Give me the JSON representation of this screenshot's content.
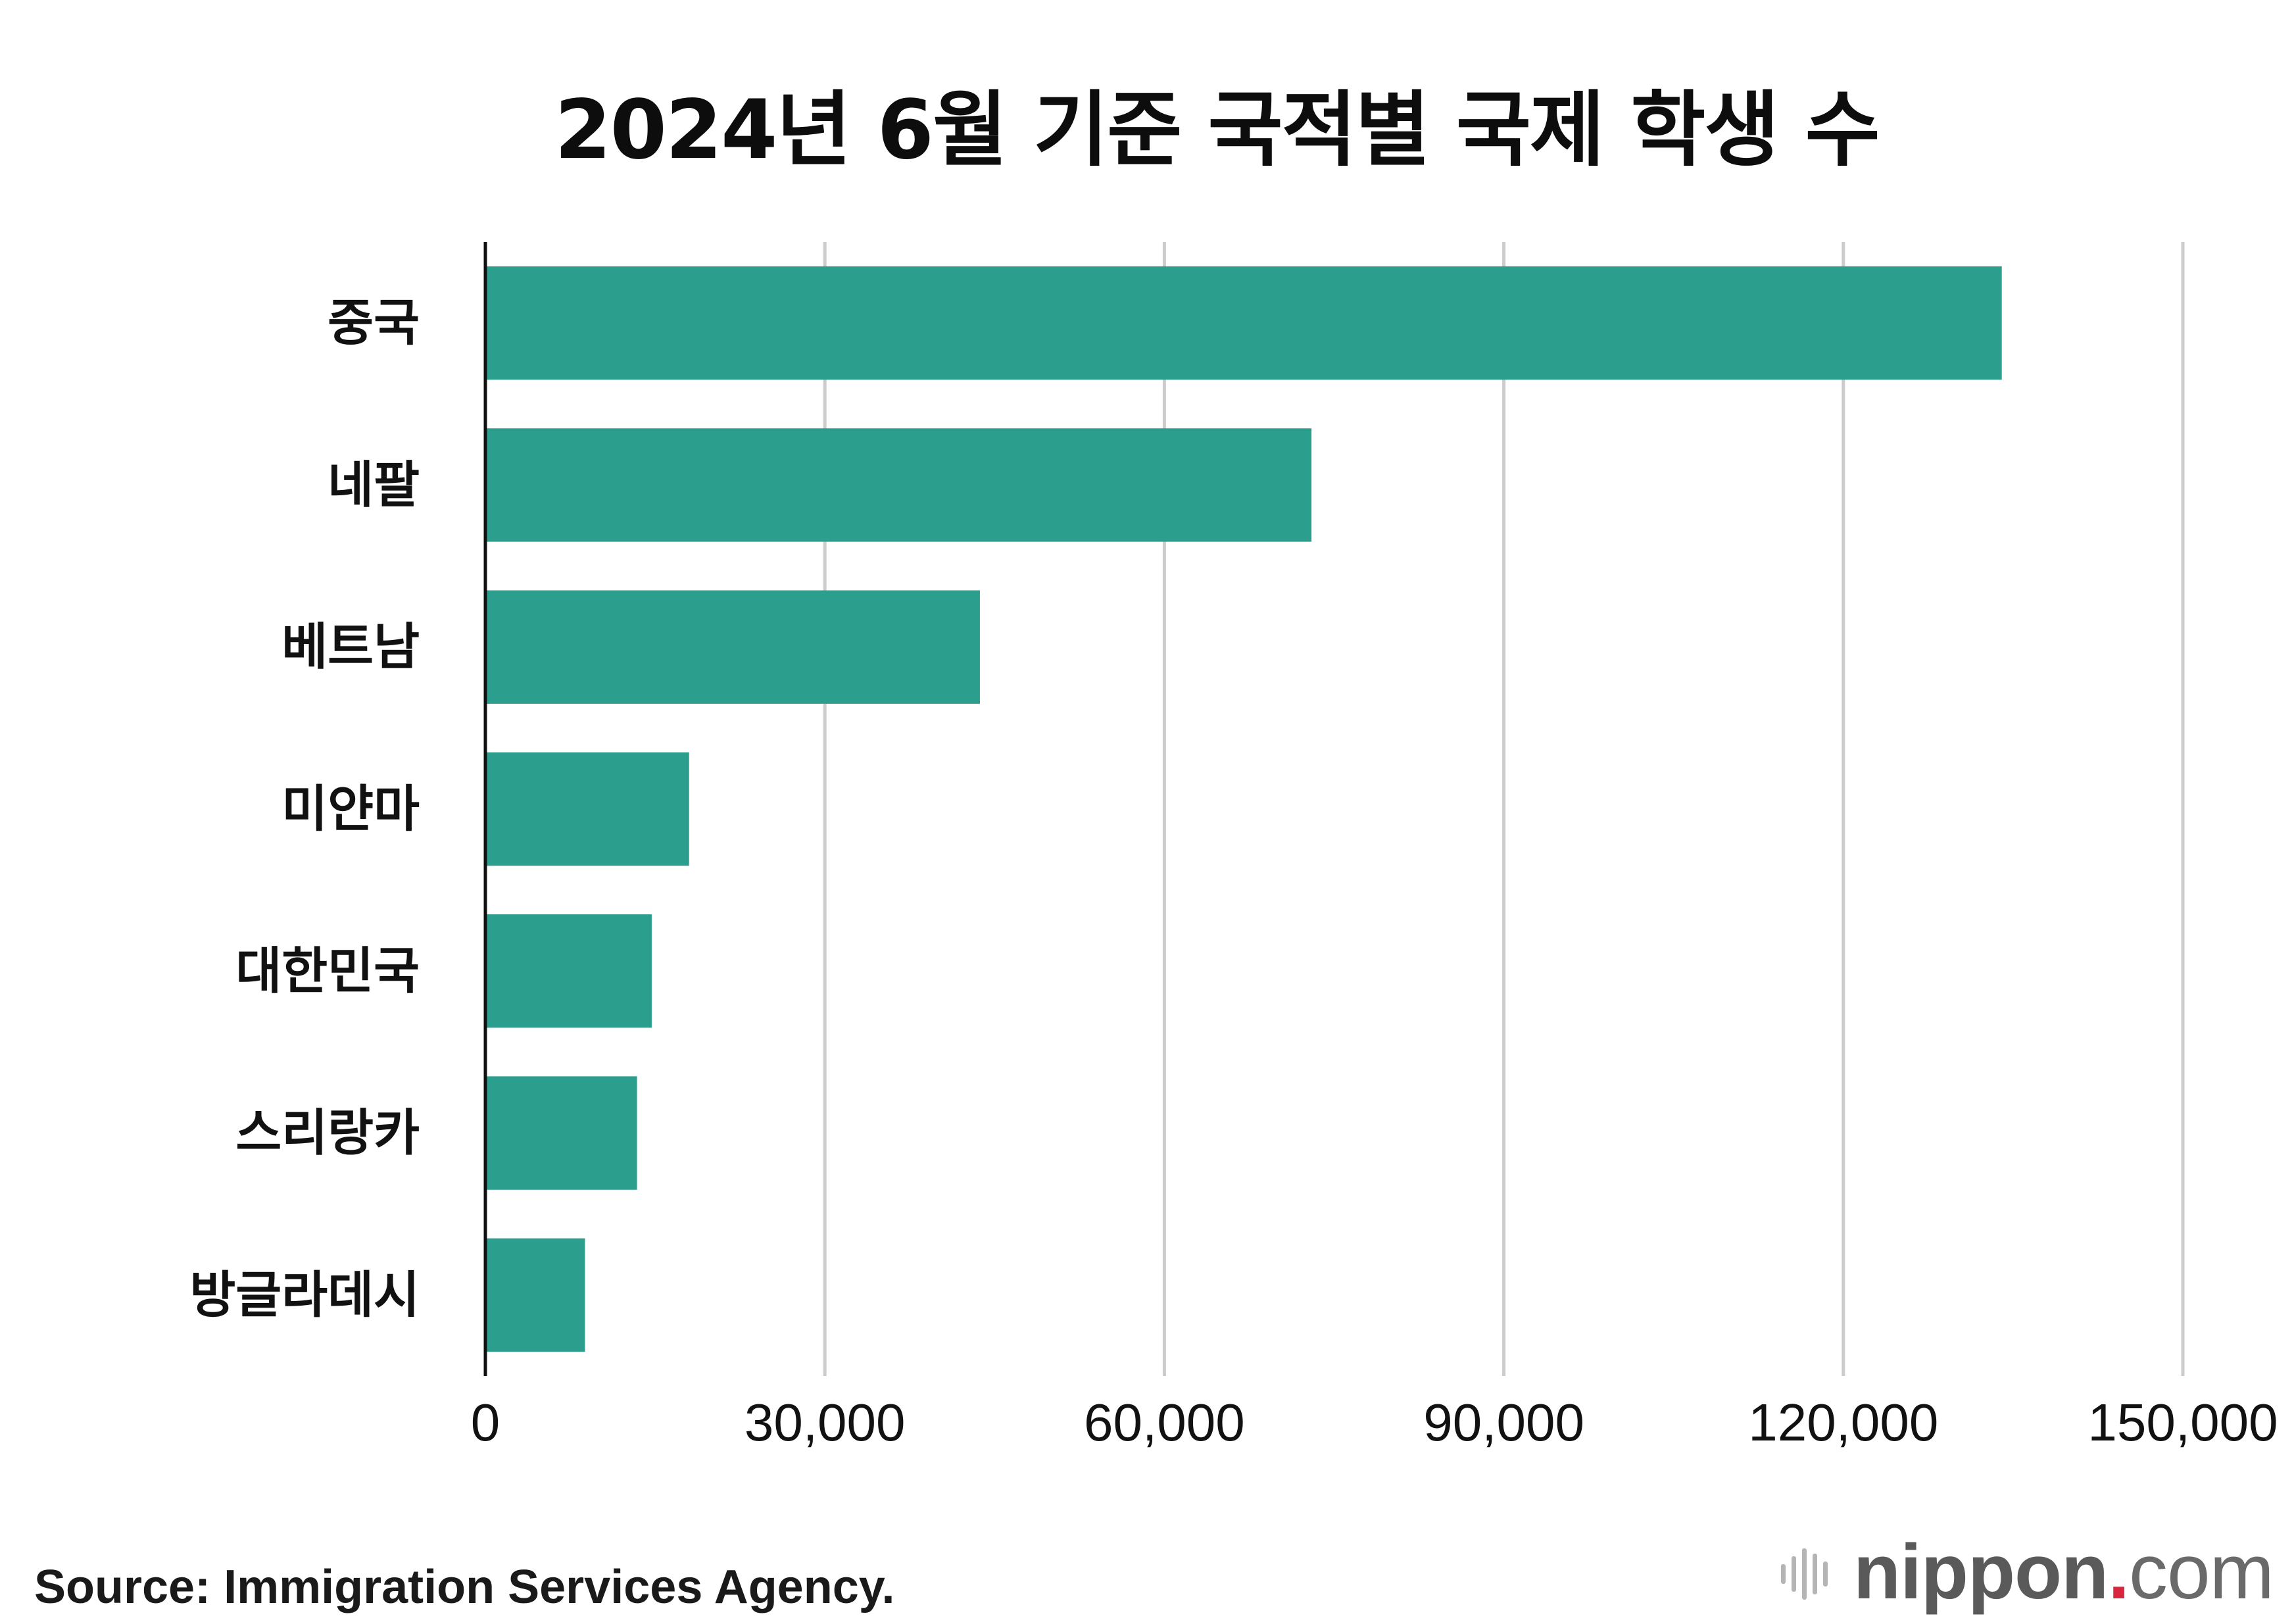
{
  "chart_data": {
    "type": "bar",
    "orientation": "horizontal",
    "title": "2024년 6월 기준 국적별 국제 학생 수",
    "categories": [
      "중국",
      "네팔",
      "베트남",
      "미얀마",
      "대한민국",
      "스리랑카",
      "방글라데시"
    ],
    "values": [
      134000,
      73000,
      43700,
      18000,
      14700,
      13400,
      8800
    ],
    "xlim": [
      0,
      150000
    ],
    "ticks": [
      0,
      30000,
      60000,
      90000,
      120000,
      150000
    ],
    "tick_labels": [
      "0",
      "30,000",
      "60,000",
      "90,000",
      "120,000",
      "150,000"
    ],
    "xlabel": "",
    "ylabel": "",
    "grid": true,
    "bar_color": "#2c9e8e"
  },
  "source": "Source: Immigration Services Agency.",
  "logo": {
    "name": "nippon",
    "dot": ".",
    "tld": "com"
  }
}
